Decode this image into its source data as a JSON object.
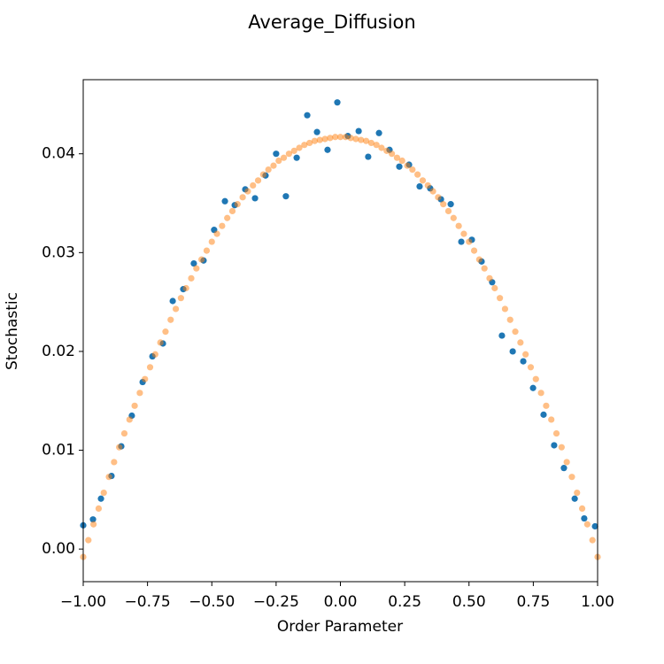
{
  "chart_data": {
    "type": "scatter",
    "title": "Average_Diffusion",
    "xlabel": "Order Parameter",
    "ylabel": "Stochastic",
    "xlim": [
      -1,
      1
    ],
    "ylim": [
      -0.0033,
      0.0475
    ],
    "xticks": [
      {
        "value": -1,
        "label": "−1.00"
      },
      {
        "value": -0.75,
        "label": "−0.75"
      },
      {
        "value": -0.5,
        "label": "−0.50"
      },
      {
        "value": -0.25,
        "label": "−0.25"
      },
      {
        "value": 0,
        "label": "0.00"
      },
      {
        "value": 0.25,
        "label": "0.25"
      },
      {
        "value": 0.5,
        "label": "0.50"
      },
      {
        "value": 0.75,
        "label": "0.75"
      },
      {
        "value": 1,
        "label": "1.00"
      }
    ],
    "yticks": [
      {
        "value": 0,
        "label": "0.00"
      },
      {
        "value": 0.01,
        "label": "0.01"
      },
      {
        "value": 0.02,
        "label": "0.02"
      },
      {
        "value": 0.03,
        "label": "0.03"
      },
      {
        "value": 0.04,
        "label": "0.04"
      }
    ],
    "series": [
      {
        "color": "#1f77b4",
        "opacity": 1,
        "x": [
          -1.0,
          -0.962,
          -0.931,
          -0.89,
          -0.852,
          -0.811,
          -0.769,
          -0.731,
          -0.69,
          -0.652,
          -0.611,
          -0.57,
          -0.532,
          -0.491,
          -0.449,
          -0.411,
          -0.37,
          -0.332,
          -0.291,
          -0.25,
          -0.212,
          -0.17,
          -0.129,
          -0.091,
          -0.05,
          -0.012,
          0.029,
          0.071,
          0.108,
          0.15,
          0.191,
          0.229,
          0.267,
          0.308,
          0.349,
          0.391,
          0.429,
          0.47,
          0.511,
          0.549,
          0.59,
          0.628,
          0.67,
          0.711,
          0.749,
          0.79,
          0.831,
          0.869,
          0.911,
          0.948,
          0.99
        ],
        "values": [
          0.0024,
          0.003,
          0.0051,
          0.0074,
          0.0104,
          0.0135,
          0.0169,
          0.0195,
          0.0208,
          0.0251,
          0.0263,
          0.0289,
          0.0292,
          0.0323,
          0.0352,
          0.0348,
          0.0364,
          0.0355,
          0.0378,
          0.04,
          0.0357,
          0.0396,
          0.0439,
          0.0422,
          0.0404,
          0.0452,
          0.0418,
          0.0423,
          0.0397,
          0.0421,
          0.0404,
          0.0387,
          0.0389,
          0.0367,
          0.0365,
          0.0354,
          0.0349,
          0.0311,
          0.0313,
          0.0291,
          0.027,
          0.0216,
          0.02,
          0.019,
          0.0163,
          0.0136,
          0.0105,
          0.0082,
          0.0051,
          0.0031,
          0.0023
        ]
      },
      {
        "color": "#ff7f0e",
        "opacity": 0.5,
        "x": [
          -1.0,
          -0.98,
          -0.96,
          -0.94,
          -0.92,
          -0.9,
          -0.88,
          -0.86,
          -0.84,
          -0.82,
          -0.8,
          -0.78,
          -0.76,
          -0.74,
          -0.72,
          -0.7,
          -0.68,
          -0.66,
          -0.64,
          -0.62,
          -0.6,
          -0.58,
          -0.56,
          -0.54,
          -0.52,
          -0.5,
          -0.48,
          -0.46,
          -0.44,
          -0.42,
          -0.4,
          -0.38,
          -0.36,
          -0.34,
          -0.32,
          -0.3,
          -0.28,
          -0.26,
          -0.24,
          -0.22,
          -0.2,
          -0.18,
          -0.16,
          -0.14,
          -0.12,
          -0.1,
          -0.08,
          -0.06,
          -0.04,
          -0.02,
          0.0,
          0.02,
          0.04,
          0.06,
          0.08,
          0.1,
          0.12,
          0.14,
          0.16,
          0.18,
          0.2,
          0.22,
          0.24,
          0.26,
          0.28,
          0.3,
          0.32,
          0.34,
          0.36,
          0.38,
          0.4,
          0.42,
          0.44,
          0.46,
          0.48,
          0.5,
          0.52,
          0.54,
          0.56,
          0.58,
          0.6,
          0.62,
          0.64,
          0.66,
          0.68,
          0.7,
          0.72,
          0.74,
          0.76,
          0.78,
          0.8,
          0.82,
          0.84,
          0.86,
          0.88,
          0.9,
          0.92,
          0.94,
          0.96,
          0.98,
          1.0
        ],
        "values": [
          -0.0008,
          0.0009,
          0.0025,
          0.0041,
          0.0057,
          0.0073,
          0.0088,
          0.0103,
          0.0117,
          0.0131,
          0.0145,
          0.0158,
          0.0172,
          0.0184,
          0.0197,
          0.0209,
          0.022,
          0.0232,
          0.0243,
          0.0254,
          0.0264,
          0.0274,
          0.0284,
          0.0293,
          0.0302,
          0.0311,
          0.0319,
          0.0327,
          0.0335,
          0.0342,
          0.0349,
          0.0356,
          0.0362,
          0.0368,
          0.0373,
          0.0379,
          0.0384,
          0.0388,
          0.0393,
          0.0396,
          0.04,
          0.0403,
          0.0406,
          0.0409,
          0.0411,
          0.0413,
          0.0414,
          0.0415,
          0.0416,
          0.0417,
          0.0417,
          0.0417,
          0.0416,
          0.0415,
          0.0414,
          0.0413,
          0.0411,
          0.0409,
          0.0406,
          0.0403,
          0.04,
          0.0396,
          0.0393,
          0.0388,
          0.0384,
          0.0379,
          0.0373,
          0.0368,
          0.0362,
          0.0356,
          0.0349,
          0.0342,
          0.0335,
          0.0327,
          0.0319,
          0.0311,
          0.0302,
          0.0293,
          0.0284,
          0.0274,
          0.0264,
          0.0254,
          0.0243,
          0.0232,
          0.022,
          0.0209,
          0.0197,
          0.0184,
          0.0172,
          0.0158,
          0.0145,
          0.0131,
          0.0117,
          0.0103,
          0.0088,
          0.0073,
          0.0057,
          0.0041,
          0.0025,
          0.0009,
          -0.0008
        ]
      }
    ]
  }
}
